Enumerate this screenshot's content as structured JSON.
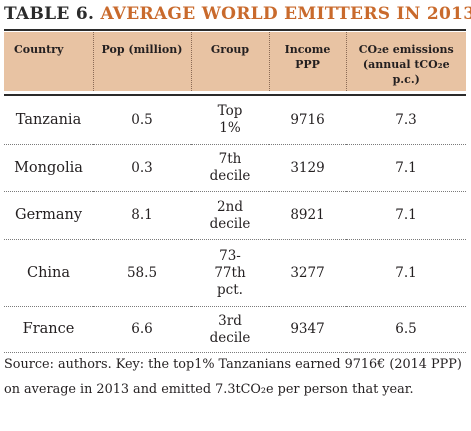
{
  "title": {
    "number": "TABLE 6.",
    "text": "AVERAGE WORLD EMITTERS IN 2013"
  },
  "table": {
    "headers": [
      "Country",
      "Pop (million)",
      "Group",
      "Income PPP",
      "CO₂e emissions (annual tCO₂e p.c.)"
    ],
    "rows": [
      {
        "country": "Tanzania",
        "pop": "0.5",
        "group": "Top\n1%",
        "income": "9716",
        "emissions": "7.3"
      },
      {
        "country": "Mongolia",
        "pop": "0.3",
        "group": "7th\ndecile",
        "income": "3129",
        "emissions": "7.1"
      },
      {
        "country": "Germany",
        "pop": "8.1",
        "group": "2nd\ndecile",
        "income": "8921",
        "emissions": "7.1"
      },
      {
        "country": "China",
        "pop": "58.5",
        "group": "73-\n77th\npct.",
        "income": "3277",
        "emissions": "7.1"
      },
      {
        "country": "France",
        "pop": "6.6",
        "group": "3rd\ndecile",
        "income": "9347",
        "emissions": "6.5"
      }
    ]
  },
  "source": "Source: authors. Key: the top1% Tanzanians earned 9716€ (2014 PPP) on average in 2013 and emitted 7.3tCO₂e per person that year."
}
